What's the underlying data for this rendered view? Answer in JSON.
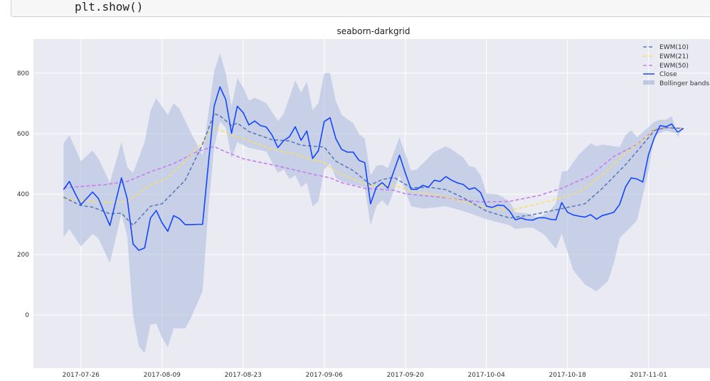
{
  "code_cell": {
    "text": "plt.show()"
  },
  "chart_data": {
    "type": "line",
    "title": "seaborn-darkgrid",
    "xlabel": "",
    "ylabel": "",
    "x_start_date": "2017-07-23",
    "x_unit": "days since x_start_date",
    "xlim_days": [
      -5.2,
      111.6
    ],
    "ylim": [
      -176,
      913
    ],
    "grid": true,
    "legend_position": "top-right",
    "yticks": [
      0,
      200,
      400,
      600,
      800
    ],
    "ytick_labels": [
      "0",
      "200",
      "400",
      "600",
      "800"
    ],
    "xticks_days": [
      3,
      17,
      31,
      45,
      59,
      73,
      87,
      101
    ],
    "xtick_labels": [
      "2017-07-26",
      "2017-08-09",
      "2017-08-23",
      "2017-09-06",
      "2017-09-20",
      "2017-10-04",
      "2017-10-18",
      "2017-11-01"
    ],
    "colors": {
      "ewm10": "#5a7bb5",
      "ewm21": "#f5de6a",
      "ewm50": "#c77cf0",
      "close": "#1246ff",
      "bands": "#a9b9dc"
    },
    "legend": [
      "EWM(10)",
      "EWM(21)",
      "EWM(50)",
      "Close",
      "Bollinger bands"
    ],
    "close": [
      415,
      442,
      402,
      365,
      386,
      407,
      386,
      341,
      296,
      375,
      454,
      384,
      235,
      214,
      222,
      321,
      346,
      305,
      277,
      329,
      319,
      299,
      299,
      300,
      300,
      500,
      691,
      755,
      713,
      601,
      691,
      670,
      629,
      642,
      627,
      622,
      595,
      554,
      577,
      590,
      623,
      578,
      609,
      518,
      544,
      640,
      653,
      584,
      548,
      539,
      539,
      512,
      504,
      368,
      423,
      438,
      420,
      475,
      529,
      470,
      416,
      416,
      429,
      423,
      446,
      442,
      458,
      446,
      437,
      432,
      416,
      421,
      405,
      360,
      356,
      364,
      362,
      344,
      315,
      321,
      315,
      314,
      322,
      322,
      317,
      315,
      372,
      340,
      331,
      327,
      324,
      332,
      317,
      329,
      334,
      340,
      366,
      423,
      454,
      450,
      440,
      532,
      587,
      627,
      623,
      632,
      605,
      617
    ],
    "ewm10": [
      [
        0,
        390
      ],
      [
        3,
        362
      ],
      [
        5,
        357
      ],
      [
        8,
        335
      ],
      [
        10,
        337
      ],
      [
        12,
        297
      ],
      [
        15,
        360
      ],
      [
        17,
        368
      ],
      [
        21,
        446
      ],
      [
        24,
        565
      ],
      [
        26,
        666
      ],
      [
        27,
        659
      ],
      [
        29,
        627
      ],
      [
        30,
        635
      ],
      [
        32,
        607
      ],
      [
        36,
        580
      ],
      [
        39,
        576
      ],
      [
        41,
        562
      ],
      [
        45,
        556
      ],
      [
        47,
        509
      ],
      [
        50,
        478
      ],
      [
        53,
        431
      ],
      [
        55,
        448
      ],
      [
        57,
        456
      ],
      [
        60,
        421
      ],
      [
        63,
        423
      ],
      [
        66,
        415
      ],
      [
        69,
        388
      ],
      [
        73,
        344
      ],
      [
        77,
        321
      ],
      [
        81,
        332
      ],
      [
        82,
        336
      ],
      [
        86,
        352
      ],
      [
        90,
        368
      ],
      [
        93,
        419
      ],
      [
        97,
        497
      ],
      [
        100,
        564
      ],
      [
        102,
        611
      ],
      [
        104,
        620
      ],
      [
        107,
        617
      ]
    ],
    "ewm21": [
      [
        0,
        385
      ],
      [
        3,
        380
      ],
      [
        7,
        372
      ],
      [
        11,
        376
      ],
      [
        15,
        431
      ],
      [
        18,
        454
      ],
      [
        21,
        509
      ],
      [
        24,
        572
      ],
      [
        26,
        623
      ],
      [
        28,
        603
      ],
      [
        29,
        595
      ],
      [
        31,
        584
      ],
      [
        36,
        548
      ],
      [
        40,
        533
      ],
      [
        43,
        513
      ],
      [
        45,
        505
      ],
      [
        47,
        474
      ],
      [
        50,
        450
      ],
      [
        53,
        427
      ],
      [
        57,
        431
      ],
      [
        60,
        409
      ],
      [
        65,
        395
      ],
      [
        72,
        360
      ],
      [
        77,
        346
      ],
      [
        82,
        368
      ],
      [
        86,
        388
      ],
      [
        89,
        407
      ],
      [
        93,
        462
      ],
      [
        97,
        536
      ],
      [
        100,
        580
      ],
      [
        102,
        615
      ],
      [
        104,
        620
      ],
      [
        107,
        617
      ]
    ],
    "ewm50": [
      [
        0,
        421
      ],
      [
        7,
        431
      ],
      [
        11,
        442
      ],
      [
        15,
        474
      ],
      [
        19,
        501
      ],
      [
        23,
        540
      ],
      [
        26,
        558
      ],
      [
        27,
        548
      ],
      [
        28,
        540
      ],
      [
        31,
        517
      ],
      [
        37,
        493
      ],
      [
        43,
        466
      ],
      [
        46,
        454
      ],
      [
        48,
        438
      ],
      [
        52,
        419
      ],
      [
        57,
        413
      ],
      [
        59,
        401
      ],
      [
        65,
        390
      ],
      [
        72,
        374
      ],
      [
        77,
        376
      ],
      [
        82,
        395
      ],
      [
        86,
        419
      ],
      [
        91,
        462
      ],
      [
        95,
        525
      ],
      [
        99,
        564
      ],
      [
        102,
        615
      ],
      [
        104,
        620
      ],
      [
        107,
        618
      ]
    ],
    "band_upper": [
      [
        0,
        568
      ],
      [
        1,
        595
      ],
      [
        3,
        509
      ],
      [
        5,
        544
      ],
      [
        6,
        518
      ],
      [
        8,
        438
      ],
      [
        10,
        572
      ],
      [
        11,
        489
      ],
      [
        12,
        470
      ],
      [
        14,
        572
      ],
      [
        15,
        674
      ],
      [
        16,
        717
      ],
      [
        18,
        662
      ],
      [
        19,
        701
      ],
      [
        20,
        682
      ],
      [
        22,
        603
      ],
      [
        24,
        529
      ],
      [
        26,
        807
      ],
      [
        27,
        866
      ],
      [
        28,
        800
      ],
      [
        29,
        689
      ],
      [
        30,
        784
      ],
      [
        31,
        753
      ],
      [
        32,
        709
      ],
      [
        33,
        719
      ],
      [
        35,
        701
      ],
      [
        37,
        642
      ],
      [
        38,
        666
      ],
      [
        40,
        776
      ],
      [
        41,
        736
      ],
      [
        42,
        772
      ],
      [
        43,
        678
      ],
      [
        44,
        701
      ],
      [
        45,
        800
      ],
      [
        46,
        801
      ],
      [
        47,
        709
      ],
      [
        48,
        662
      ],
      [
        50,
        635
      ],
      [
        51,
        599
      ],
      [
        52,
        584
      ],
      [
        53,
        462
      ],
      [
        54,
        493
      ],
      [
        55,
        497
      ],
      [
        56,
        486
      ],
      [
        58,
        588
      ],
      [
        60,
        478
      ],
      [
        61,
        482
      ],
      [
        62,
        501
      ],
      [
        64,
        540
      ],
      [
        66,
        558
      ],
      [
        67,
        548
      ],
      [
        69,
        521
      ],
      [
        70,
        493
      ],
      [
        71,
        489
      ],
      [
        72,
        462
      ],
      [
        73,
        403
      ],
      [
        75,
        399
      ],
      [
        77,
        376
      ],
      [
        78,
        340
      ],
      [
        80,
        336
      ],
      [
        82,
        321
      ],
      [
        84,
        345
      ],
      [
        85,
        370
      ],
      [
        86,
        474
      ],
      [
        87,
        478
      ],
      [
        89,
        532
      ],
      [
        91,
        568
      ],
      [
        92,
        558
      ],
      [
        93,
        564
      ],
      [
        96,
        556
      ],
      [
        97,
        595
      ],
      [
        98,
        611
      ],
      [
        99,
        588
      ],
      [
        102,
        640
      ],
      [
        103,
        646
      ],
      [
        104,
        646
      ],
      [
        105,
        658
      ],
      [
        106,
        588
      ],
      [
        107,
        620
      ]
    ],
    "band_lower": [
      [
        0,
        258
      ],
      [
        1,
        285
      ],
      [
        3,
        227
      ],
      [
        5,
        268
      ],
      [
        6,
        254
      ],
      [
        8,
        172
      ],
      [
        10,
        336
      ],
      [
        11,
        259
      ],
      [
        12,
        -1
      ],
      [
        13,
        -103
      ],
      [
        14,
        -126
      ],
      [
        15,
        -32
      ],
      [
        16,
        -28
      ],
      [
        17,
        -75
      ],
      [
        18,
        -107
      ],
      [
        19,
        -44
      ],
      [
        21,
        -44
      ],
      [
        22,
        -9
      ],
      [
        24,
        78
      ],
      [
        25,
        353
      ],
      [
        26,
        556
      ],
      [
        27,
        640
      ],
      [
        28,
        620
      ],
      [
        29,
        518
      ],
      [
        30,
        572
      ],
      [
        32,
        553
      ],
      [
        35,
        541
      ],
      [
        37,
        470
      ],
      [
        38,
        482
      ],
      [
        39,
        450
      ],
      [
        40,
        462
      ],
      [
        41,
        423
      ],
      [
        42,
        438
      ],
      [
        43,
        360
      ],
      [
        44,
        376
      ],
      [
        45,
        482
      ],
      [
        46,
        501
      ],
      [
        47,
        454
      ],
      [
        48,
        442
      ],
      [
        50,
        431
      ],
      [
        52,
        423
      ],
      [
        53,
        297
      ],
      [
        54,
        360
      ],
      [
        55,
        380
      ],
      [
        56,
        360
      ],
      [
        58,
        462
      ],
      [
        60,
        360
      ],
      [
        62,
        352
      ],
      [
        66,
        360
      ],
      [
        69,
        344
      ],
      [
        73,
        317
      ],
      [
        77,
        297
      ],
      [
        78,
        285
      ],
      [
        80,
        289
      ],
      [
        81,
        289
      ],
      [
        83,
        266
      ],
      [
        85,
        219
      ],
      [
        86,
        270
      ],
      [
        88,
        148
      ],
      [
        90,
        101
      ],
      [
        92,
        78
      ],
      [
        94,
        113
      ],
      [
        95,
        172
      ],
      [
        96,
        254
      ],
      [
        99,
        313
      ],
      [
        101,
        478
      ],
      [
        102,
        595
      ],
      [
        104,
        610
      ],
      [
        106,
        600
      ],
      [
        107,
        615
      ]
    ]
  }
}
